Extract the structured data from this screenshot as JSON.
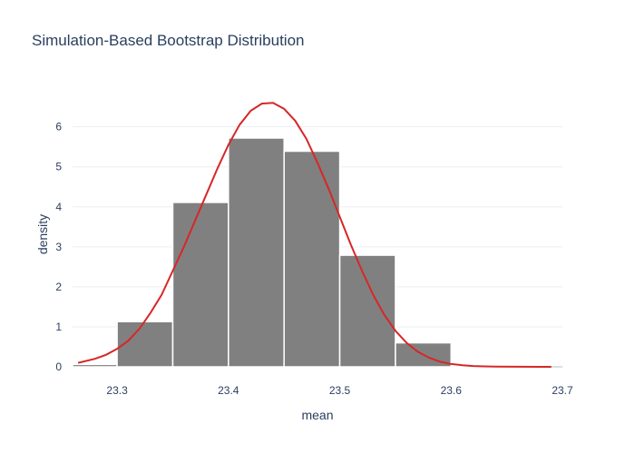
{
  "chart_data": {
    "type": "bar",
    "title": "Simulation-Based Bootstrap Distribution",
    "xlabel": "mean",
    "ylabel": "density",
    "xlim": [
      23.26,
      23.7
    ],
    "ylim": [
      0,
      6.9
    ],
    "x_ticks": [
      23.3,
      23.4,
      23.5,
      23.6,
      23.7
    ],
    "y_ticks": [
      0,
      1,
      2,
      3,
      4,
      5,
      6
    ],
    "grid": true,
    "colors": {
      "bars": "#808080",
      "curve": "#d62728",
      "text": "#2a3f5f"
    },
    "histogram": {
      "bins": [
        {
          "x0": 23.25,
          "x1": 23.3,
          "density": 0.06
        },
        {
          "x0": 23.3,
          "x1": 23.35,
          "density": 1.13
        },
        {
          "x0": 23.35,
          "x1": 23.4,
          "density": 4.11
        },
        {
          "x0": 23.4,
          "x1": 23.45,
          "density": 5.72
        },
        {
          "x0": 23.45,
          "x1": 23.5,
          "density": 5.39
        },
        {
          "x0": 23.5,
          "x1": 23.55,
          "density": 2.79
        },
        {
          "x0": 23.55,
          "x1": 23.6,
          "density": 0.6
        },
        {
          "x0": 23.6,
          "x1": 23.65,
          "density": 0.02
        }
      ]
    },
    "density_curve": {
      "x": [
        23.265,
        23.28,
        23.29,
        23.3,
        23.31,
        23.32,
        23.33,
        23.34,
        23.35,
        23.36,
        23.37,
        23.38,
        23.39,
        23.4,
        23.41,
        23.42,
        23.43,
        23.44,
        23.45,
        23.46,
        23.47,
        23.48,
        23.49,
        23.5,
        23.51,
        23.52,
        23.53,
        23.54,
        23.55,
        23.56,
        23.57,
        23.58,
        23.59,
        23.6,
        23.61,
        23.62,
        23.63,
        23.64,
        23.66,
        23.68,
        23.69
      ],
      "y": [
        0.1,
        0.2,
        0.3,
        0.45,
        0.65,
        0.95,
        1.35,
        1.8,
        2.4,
        3.0,
        3.65,
        4.3,
        4.95,
        5.55,
        6.05,
        6.4,
        6.58,
        6.6,
        6.45,
        6.15,
        5.7,
        5.1,
        4.45,
        3.75,
        3.05,
        2.4,
        1.8,
        1.3,
        0.9,
        0.6,
        0.38,
        0.23,
        0.13,
        0.07,
        0.04,
        0.02,
        0.01,
        0.005,
        0.002,
        0.001,
        0.0
      ]
    }
  }
}
